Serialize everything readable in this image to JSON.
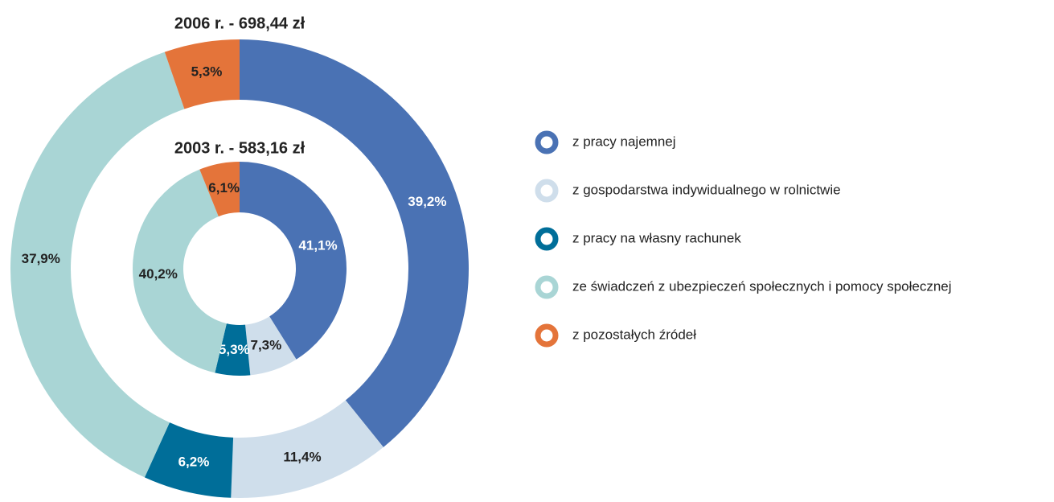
{
  "chart_data": {
    "type": "donut",
    "categories": [
      "z pracy najemnej",
      "z gospodarstwa indywidualnego w rolnictwie",
      "z pracy na własny rachunek",
      "ze świadczeń z ubezpieczeń społecznych i pomocy społecznej",
      "z pozostałych źródeł"
    ],
    "colors": [
      "#4a72b4",
      "#cfdeeb",
      "#006e99",
      "#a9d5d5",
      "#e4743a"
    ],
    "series": [
      {
        "name": "2006 r. - 698,44 zł",
        "values": [
          39.2,
          11.4,
          6.2,
          37.9,
          5.3
        ],
        "value_labels": [
          "39,2%",
          "11,4%",
          "6,2%",
          "37,9%",
          "5,3%"
        ]
      },
      {
        "name": "2003 r. - 583,16 zł",
        "values": [
          41.1,
          7.3,
          5.3,
          40.2,
          6.1
        ],
        "value_labels": [
          "41,1%",
          "7,3%",
          "5,3%",
          "40,2%",
          "6,1%"
        ]
      }
    ],
    "legend": "right"
  }
}
